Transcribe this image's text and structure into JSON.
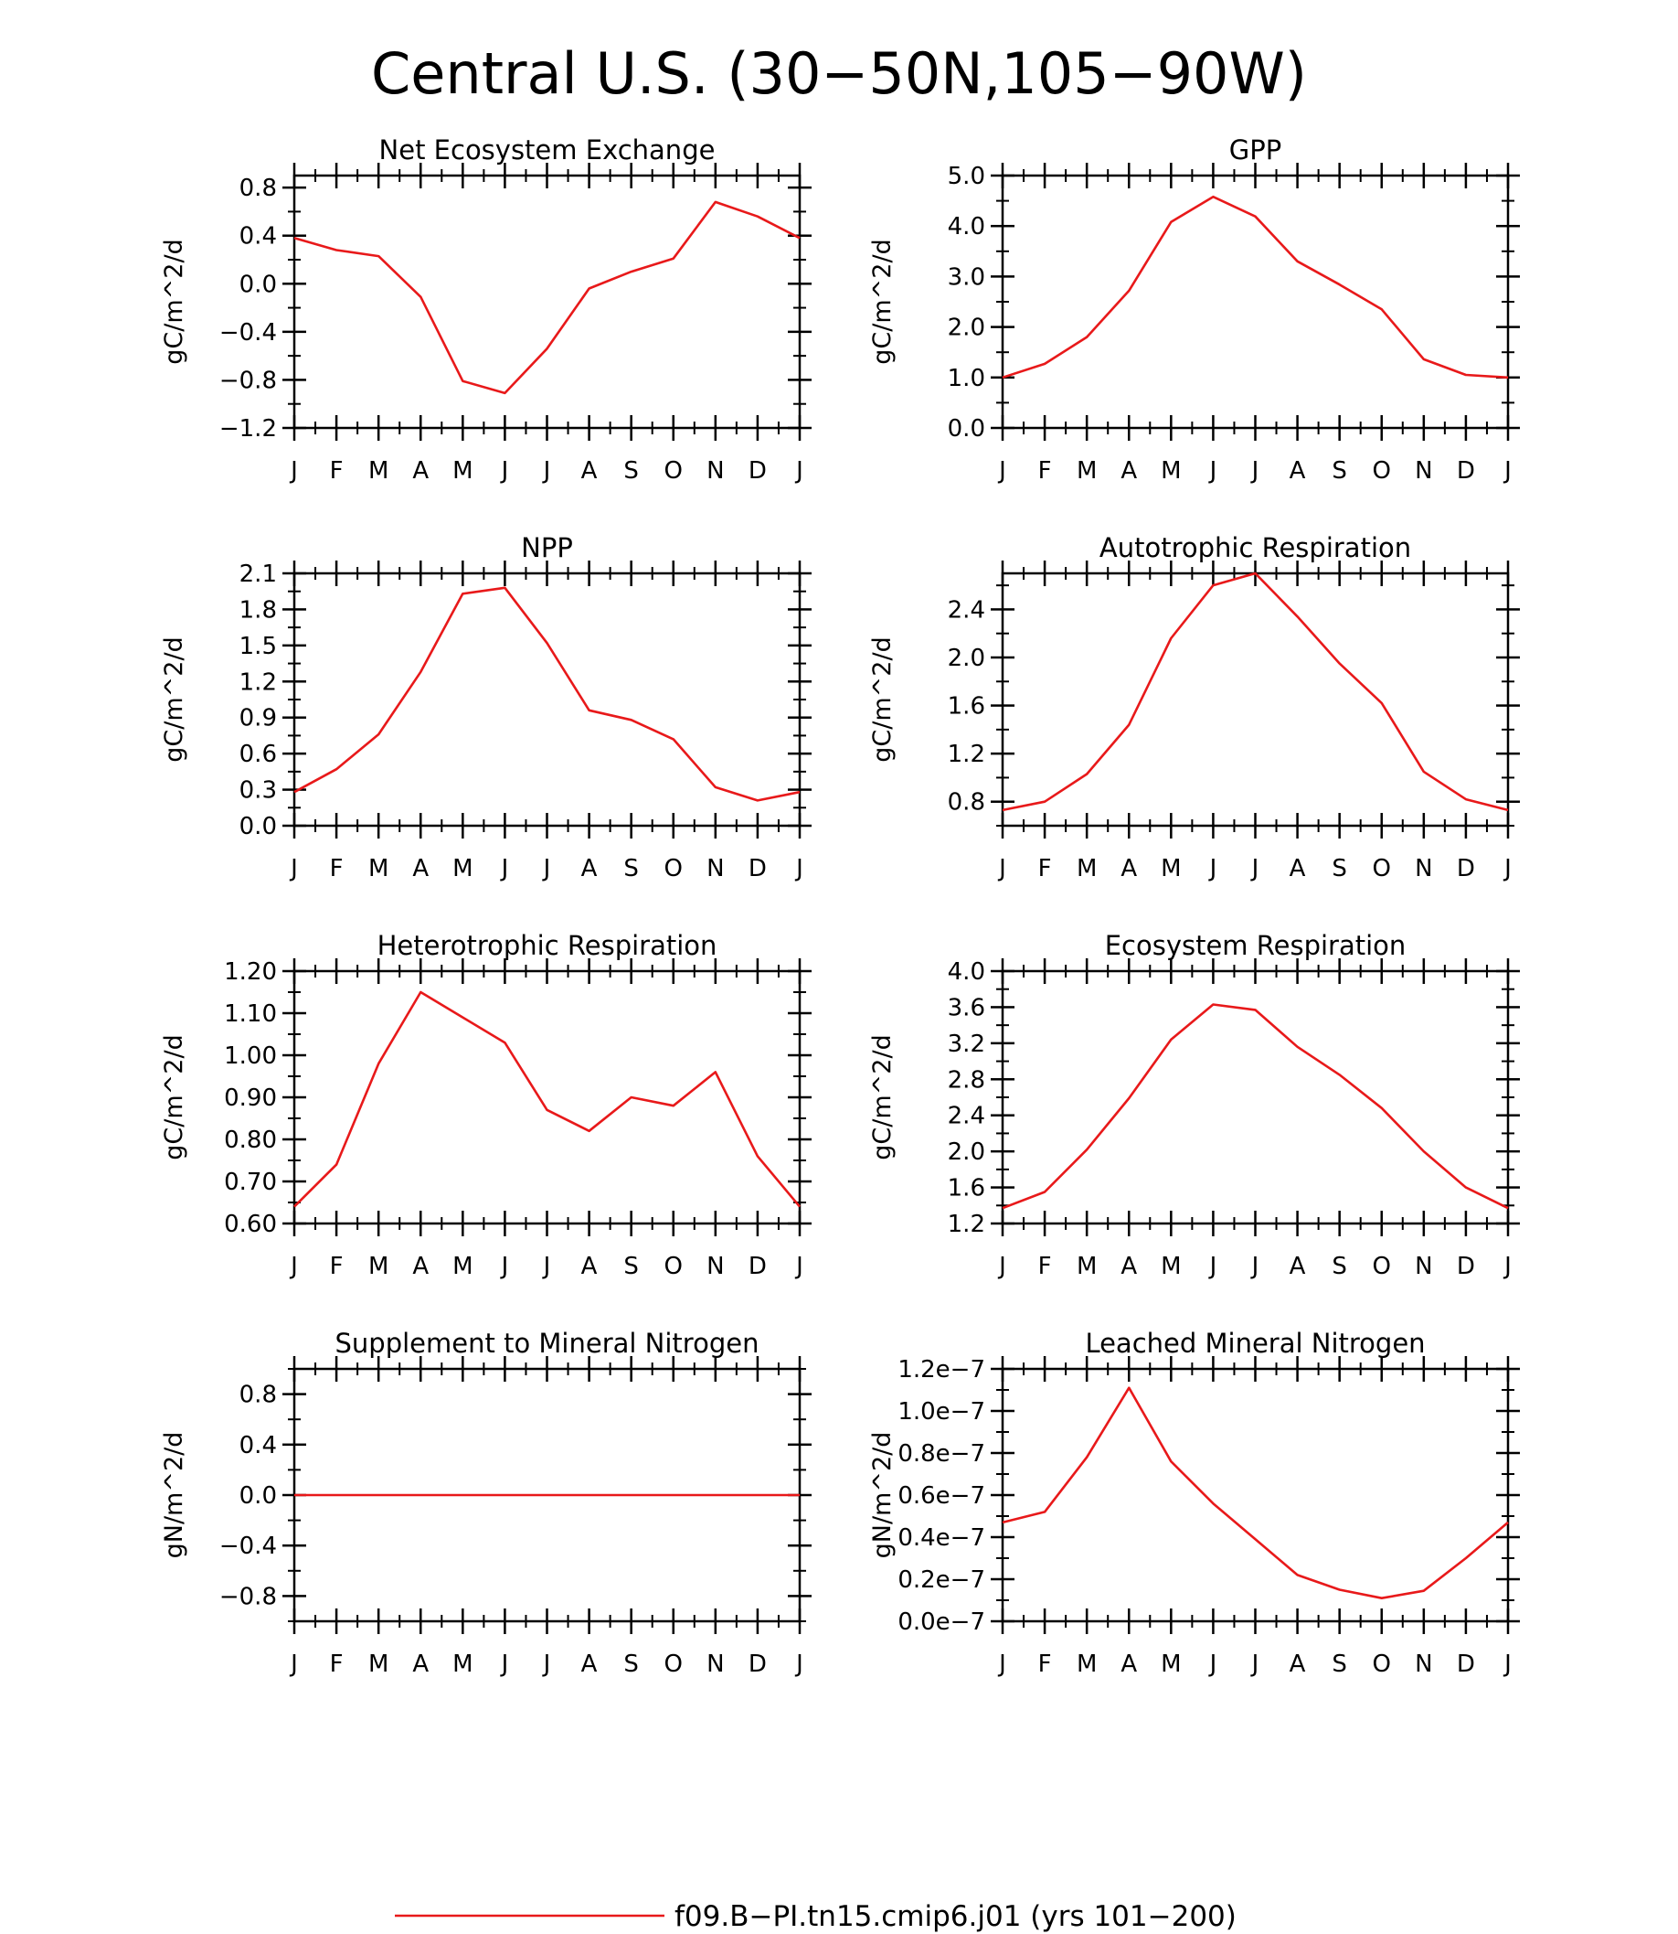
{
  "figure": {
    "title": "Central U.S. (30−50N,105−90W)",
    "series_color": "#e8191a"
  },
  "legend": {
    "label": "f09.B−PI.tn15.cmip6.j01 (yrs 101−200)"
  },
  "chart_data": [
    {
      "type": "line",
      "title": "Net Ecosystem Exchange",
      "ylabel": "gC/m^2/d",
      "xlabel": "",
      "x": [
        "J",
        "F",
        "M",
        "A",
        "M",
        "J",
        "J",
        "A",
        "S",
        "O",
        "N",
        "D",
        "J"
      ],
      "ylim": [
        -1.2,
        0.9
      ],
      "yticks": [
        -1.2,
        -0.8,
        -0.4,
        0.0,
        0.4,
        0.8
      ],
      "ytick_labels": [
        "−1.2",
        "−0.8",
        "−0.4",
        "0.0",
        "0.4",
        "0.8"
      ],
      "minor_yticks": [
        -1.0,
        -0.6,
        -0.2,
        0.2,
        0.6
      ],
      "series": [
        {
          "values": [
            0.38,
            0.28,
            0.23,
            -0.11,
            -0.81,
            -0.91,
            -0.54,
            -0.04,
            0.1,
            0.21,
            0.68,
            0.56,
            0.38
          ]
        }
      ],
      "grid": false
    },
    {
      "type": "line",
      "title": "GPP",
      "ylabel": "gC/m^2/d",
      "xlabel": "",
      "x": [
        "J",
        "F",
        "M",
        "A",
        "M",
        "J",
        "J",
        "A",
        "S",
        "O",
        "N",
        "D",
        "J"
      ],
      "ylim": [
        0.0,
        5.0
      ],
      "yticks": [
        0.0,
        1.0,
        2.0,
        3.0,
        4.0,
        5.0
      ],
      "ytick_labels": [
        "0.0",
        "1.0",
        "2.0",
        "3.0",
        "4.0",
        "5.0"
      ],
      "minor_yticks": [
        0.5,
        1.5,
        2.5,
        3.5,
        4.5
      ],
      "series": [
        {
          "values": [
            1.0,
            1.27,
            1.8,
            2.72,
            4.08,
            4.58,
            4.19,
            3.3,
            2.84,
            2.35,
            1.36,
            1.05,
            1.0
          ]
        }
      ],
      "grid": false
    },
    {
      "type": "line",
      "title": "NPP",
      "ylabel": "gC/m^2/d",
      "xlabel": "",
      "x": [
        "J",
        "F",
        "M",
        "A",
        "M",
        "J",
        "J",
        "A",
        "S",
        "O",
        "N",
        "D",
        "J"
      ],
      "ylim": [
        0.0,
        2.1
      ],
      "yticks": [
        0.0,
        0.3,
        0.6,
        0.9,
        1.2,
        1.5,
        1.8,
        2.1
      ],
      "ytick_labels": [
        "0.0",
        "0.3",
        "0.6",
        "0.9",
        "1.2",
        "1.5",
        "1.8",
        "2.1"
      ],
      "minor_yticks": [
        0.15,
        0.45,
        0.75,
        1.05,
        1.35,
        1.65,
        1.95
      ],
      "series": [
        {
          "values": [
            0.28,
            0.47,
            0.76,
            1.28,
            1.93,
            1.98,
            1.52,
            0.96,
            0.88,
            0.72,
            0.32,
            0.21,
            0.28
          ]
        }
      ],
      "grid": false
    },
    {
      "type": "line",
      "title": "Autotrophic Respiration",
      "ylabel": "gC/m^2/d",
      "xlabel": "",
      "x": [
        "J",
        "F",
        "M",
        "A",
        "M",
        "J",
        "J",
        "A",
        "S",
        "O",
        "N",
        "D",
        "J"
      ],
      "ylim": [
        0.6,
        2.7
      ],
      "yticks": [
        0.8,
        1.2,
        1.6,
        2.0,
        2.4
      ],
      "ytick_labels": [
        "0.8",
        "1.2",
        "1.6",
        "2.0",
        "2.4"
      ],
      "minor_yticks": [
        0.6,
        1.0,
        1.4,
        1.8,
        2.2,
        2.6
      ],
      "series": [
        {
          "values": [
            0.73,
            0.8,
            1.03,
            1.44,
            2.16,
            2.6,
            2.7,
            2.34,
            1.95,
            1.62,
            1.05,
            0.82,
            0.73
          ]
        }
      ],
      "grid": false
    },
    {
      "type": "line",
      "title": "Heterotrophic Respiration",
      "ylabel": "gC/m^2/d",
      "xlabel": "",
      "x": [
        "J",
        "F",
        "M",
        "A",
        "M",
        "J",
        "J",
        "A",
        "S",
        "O",
        "N",
        "D",
        "J"
      ],
      "ylim": [
        0.6,
        1.2
      ],
      "yticks": [
        0.6,
        0.7,
        0.8,
        0.9,
        1.0,
        1.1,
        1.2
      ],
      "ytick_labels": [
        "0.60",
        "0.70",
        "0.80",
        "0.90",
        "1.00",
        "1.10",
        "1.20"
      ],
      "minor_yticks": [
        0.65,
        0.75,
        0.85,
        0.95,
        1.05,
        1.15
      ],
      "series": [
        {
          "values": [
            0.64,
            0.74,
            0.98,
            1.15,
            1.09,
            1.03,
            0.87,
            0.82,
            0.9,
            0.88,
            0.96,
            0.76,
            0.64
          ]
        }
      ],
      "grid": false
    },
    {
      "type": "line",
      "title": "Ecosystem Respiration",
      "ylabel": "gC/m^2/d",
      "xlabel": "",
      "x": [
        "J",
        "F",
        "M",
        "A",
        "M",
        "J",
        "J",
        "A",
        "S",
        "O",
        "N",
        "D",
        "J"
      ],
      "ylim": [
        1.2,
        4.0
      ],
      "yticks": [
        1.2,
        1.6,
        2.0,
        2.4,
        2.8,
        3.2,
        3.6,
        4.0
      ],
      "ytick_labels": [
        "1.2",
        "1.6",
        "2.0",
        "2.4",
        "2.8",
        "3.2",
        "3.6",
        "4.0"
      ],
      "minor_yticks": [
        1.4,
        1.8,
        2.2,
        2.6,
        3.0,
        3.4,
        3.8
      ],
      "series": [
        {
          "values": [
            1.37,
            1.55,
            2.02,
            2.59,
            3.24,
            3.63,
            3.57,
            3.16,
            2.85,
            2.48,
            2.0,
            1.6,
            1.37
          ]
        }
      ],
      "grid": false
    },
    {
      "type": "line",
      "title": "Supplement to Mineral Nitrogen",
      "ylabel": "gN/m^2/d",
      "xlabel": "",
      "x": [
        "J",
        "F",
        "M",
        "A",
        "M",
        "J",
        "J",
        "A",
        "S",
        "O",
        "N",
        "D",
        "J"
      ],
      "ylim": [
        -1.0,
        1.0
      ],
      "yticks": [
        -0.8,
        -0.4,
        0.0,
        0.4,
        0.8
      ],
      "ytick_labels": [
        "−0.8",
        "−0.4",
        "0.0",
        "0.4",
        "0.8"
      ],
      "minor_yticks": [
        -1.0,
        -0.6,
        -0.2,
        0.2,
        0.6,
        1.0
      ],
      "series": [
        {
          "values": [
            0,
            0,
            0,
            0,
            0,
            0,
            0,
            0,
            0,
            0,
            0,
            0,
            0
          ]
        }
      ],
      "grid": false
    },
    {
      "type": "line",
      "title": "Leached Mineral Nitrogen",
      "ylabel": "gN/m^2/d",
      "xlabel": "",
      "x": [
        "J",
        "F",
        "M",
        "A",
        "M",
        "J",
        "J",
        "A",
        "S",
        "O",
        "N",
        "D",
        "J"
      ],
      "ylim": [
        0.0,
        1.2e-07
      ],
      "yticks": [
        0.0,
        2e-08,
        4e-08,
        6e-08,
        8e-08,
        1e-07,
        1.2e-07
      ],
      "ytick_labels": [
        "0.0e−7",
        "0.2e−7",
        "0.4e−7",
        "0.6e−7",
        "0.8e−7",
        "1.0e−7",
        "1.2e−7"
      ],
      "minor_yticks": [
        1e-08,
        3e-08,
        5e-08,
        7e-08,
        9e-08,
        1.1e-07
      ],
      "series": [
        {
          "values": [
            4.7e-08,
            5.2e-08,
            7.8e-08,
            1.11e-07,
            7.6e-08,
            5.6e-08,
            3.9e-08,
            2.2e-08,
            1.5e-08,
            1.1e-08,
            1.45e-08,
            3e-08,
            4.7e-08
          ]
        }
      ],
      "grid": false
    }
  ]
}
